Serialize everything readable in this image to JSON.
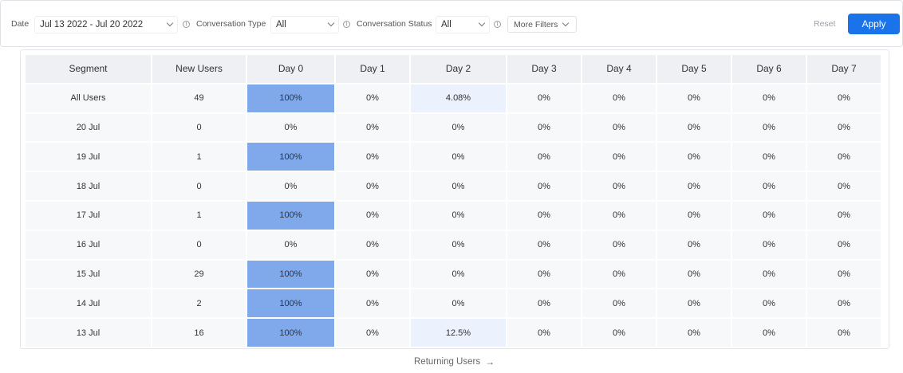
{
  "filters": {
    "date_label": "Date",
    "date_value": "Jul 13 2022 - Jul 20 2022",
    "conversation_type_label": "Conversation Type",
    "conversation_type_value": "All",
    "conversation_status_label": "Conversation Status",
    "conversation_status_value": "All",
    "more_filters_label": "More Filters",
    "reset_label": "Reset",
    "apply_label": "Apply",
    "info_glyph": "i",
    "accent_color": "#1a73e8"
  },
  "table": {
    "headers": [
      "Segment",
      "New Users",
      "Day 0",
      "Day 1",
      "Day 2",
      "Day 3",
      "Day 4",
      "Day 5",
      "Day 6",
      "Day 7"
    ],
    "rows": [
      [
        "All Users",
        "49",
        "100%",
        "0%",
        "4.08%",
        "0%",
        "0%",
        "0%",
        "0%",
        "0%"
      ],
      [
        "20 Jul",
        "0",
        "0%",
        "0%",
        "0%",
        "0%",
        "0%",
        "0%",
        "0%",
        "0%"
      ],
      [
        "19 Jul",
        "1",
        "100%",
        "0%",
        "0%",
        "0%",
        "0%",
        "0%",
        "0%",
        "0%"
      ],
      [
        "18 Jul",
        "0",
        "0%",
        "0%",
        "0%",
        "0%",
        "0%",
        "0%",
        "0%",
        "0%"
      ],
      [
        "17 Jul",
        "1",
        "100%",
        "0%",
        "0%",
        "0%",
        "0%",
        "0%",
        "0%",
        "0%"
      ],
      [
        "16 Jul",
        "0",
        "0%",
        "0%",
        "0%",
        "0%",
        "0%",
        "0%",
        "0%",
        "0%"
      ],
      [
        "15 Jul",
        "29",
        "100%",
        "0%",
        "0%",
        "0%",
        "0%",
        "0%",
        "0%",
        "0%"
      ],
      [
        "14 Jul",
        "2",
        "100%",
        "0%",
        "0%",
        "0%",
        "0%",
        "0%",
        "0%",
        "0%"
      ],
      [
        "13 Jul",
        "16",
        "100%",
        "0%",
        "12.5%",
        "0%",
        "0%",
        "0%",
        "0%",
        "0%"
      ]
    ],
    "heat_colors": {
      "high": "#7fa9eb",
      "low": "#ebf1fd",
      "none": "#f7f8fa"
    }
  },
  "footer": {
    "returning_users_label": "Returning Users",
    "arrow_glyph": "→"
  }
}
